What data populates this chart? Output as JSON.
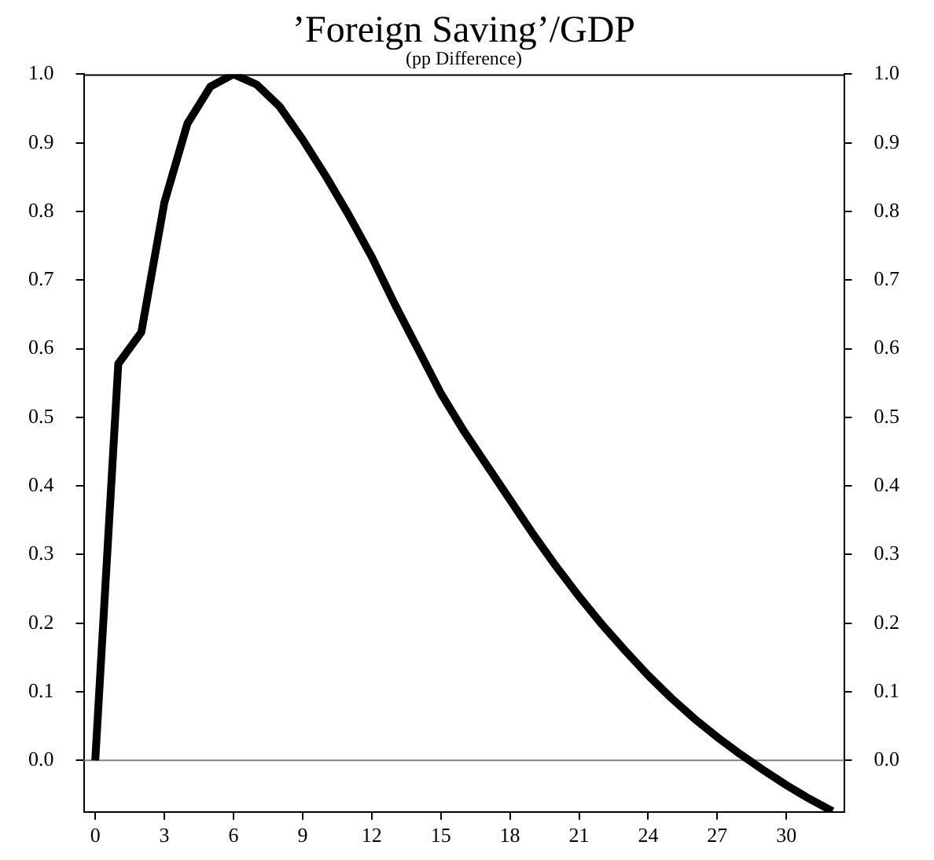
{
  "chart_data": {
    "type": "line",
    "title": "’Foreign Saving’/GDP",
    "subtitle": "(pp Difference)",
    "x": [
      0,
      1,
      2,
      3,
      4,
      5,
      6,
      7,
      8,
      9,
      10,
      11,
      12,
      13,
      14,
      15,
      16,
      17,
      18,
      19,
      20,
      21,
      22,
      23,
      24,
      25,
      26,
      27,
      28,
      29,
      30,
      31,
      32
    ],
    "series": [
      {
        "color": "#000000",
        "values": [
          0,
          0.578,
          0.624,
          0.813,
          0.928,
          0.982,
          1.0,
          0.985,
          0.953,
          0.905,
          0.852,
          0.795,
          0.734,
          0.665,
          0.6,
          0.535,
          0.48,
          0.43,
          0.38,
          0.33,
          0.283,
          0.239,
          0.198,
          0.16,
          0.124,
          0.091,
          0.061,
          0.034,
          0.009,
          -0.014,
          -0.036,
          -0.056,
          -0.074
        ]
      }
    ],
    "xlim": [
      -0.5,
      32.5
    ],
    "xticks": [
      0,
      3,
      6,
      9,
      12,
      15,
      18,
      21,
      24,
      27,
      30
    ],
    "ylim": [
      -0.075,
      1.0
    ],
    "yticks": [
      {
        "value": 0,
        "label": "0.0"
      },
      {
        "value": 0.1,
        "label": "0.1"
      },
      {
        "value": 0.2,
        "label": "0.2"
      },
      {
        "value": 0.3,
        "label": "0.3"
      },
      {
        "value": 0.4,
        "label": "0.4"
      },
      {
        "value": 0.5,
        "label": "0.5"
      },
      {
        "value": 0.6,
        "label": "0.6"
      },
      {
        "value": 0.7,
        "label": "0.7"
      },
      {
        "value": 0.8,
        "label": "0.8"
      },
      {
        "value": 0.9,
        "label": "0.9"
      },
      {
        "value": 1.0,
        "label": "1.0"
      }
    ],
    "y2lim": [
      -0.075,
      1.0
    ],
    "y2ticks": [
      {
        "value": 0,
        "label": "0.0"
      },
      {
        "value": 0.1,
        "label": "0.1"
      },
      {
        "value": 0.2,
        "label": "0.2"
      },
      {
        "value": 0.3,
        "label": "0.3"
      },
      {
        "value": 0.4,
        "label": "0.4"
      },
      {
        "value": 0.5,
        "label": "0.5"
      },
      {
        "value": 0.6,
        "label": "0.6"
      },
      {
        "value": 0.7,
        "label": "0.7"
      },
      {
        "value": 0.8,
        "label": "0.8"
      },
      {
        "value": 0.9,
        "label": "0.9"
      },
      {
        "value": 1.0,
        "label": "1.0"
      }
    ],
    "ref_lines": [
      {
        "axis": "y",
        "value": 0,
        "color": "#808080"
      }
    ],
    "grid": false,
    "legend": false,
    "marker": "none",
    "line_style": "solid"
  }
}
